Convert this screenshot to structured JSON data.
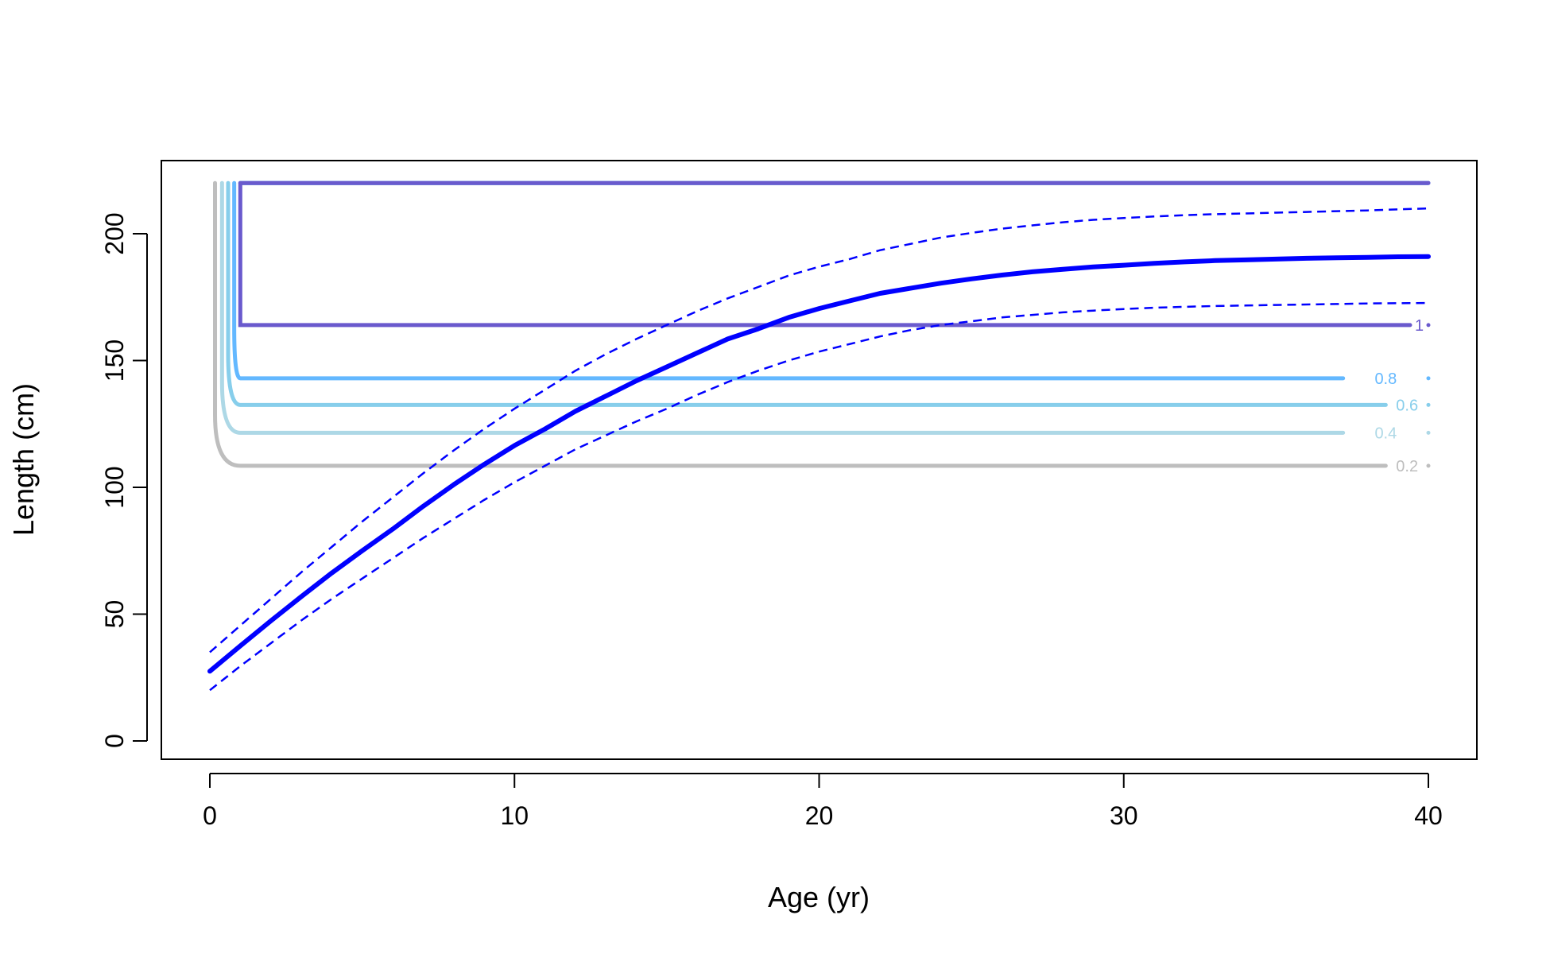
{
  "chart_data": {
    "type": "line",
    "title": "",
    "xlabel": "Age (yr)",
    "ylabel": "Length (cm)",
    "xlim": [
      -1.6,
      41.6
    ],
    "ylim": [
      -6.6,
      229
    ],
    "grid": false,
    "legend": "none",
    "x_ticks": [
      0,
      10,
      20,
      30,
      40
    ],
    "y_ticks": [
      0,
      50,
      100,
      150,
      200
    ],
    "x_tick_labels": [
      "0",
      "10",
      "20",
      "30",
      "40"
    ],
    "y_tick_labels": [
      "0",
      "50",
      "100",
      "150",
      "200"
    ],
    "growth_curve": {
      "color": "#0000FF",
      "x": [
        0,
        1,
        2,
        3,
        4,
        5,
        6,
        7,
        8,
        9,
        10,
        11,
        12,
        13,
        14,
        15,
        16,
        17,
        18,
        19,
        20,
        21,
        22,
        23,
        24,
        25,
        26,
        27,
        28,
        29,
        30,
        31,
        32,
        33,
        34,
        35,
        36,
        37,
        38,
        39,
        40
      ],
      "mean": [
        27.5,
        37.5,
        47.3,
        56.9,
        66.2,
        75.0,
        83.5,
        92.5,
        101.0,
        109.0,
        116.5,
        123.0,
        130.0,
        136.0,
        142.0,
        147.5,
        153.0,
        158.5,
        162.5,
        167.0,
        170.5,
        173.5,
        176.5,
        178.5,
        180.5,
        182.2,
        183.7,
        185.0,
        186.0,
        186.9,
        187.6,
        188.3,
        188.9,
        189.4,
        189.7,
        190.0,
        190.3,
        190.5,
        190.7,
        190.9,
        191.0
      ],
      "upper": [
        35.0,
        45.5,
        56.0,
        66.5,
        76.5,
        86.5,
        96.0,
        105.5,
        114.5,
        123.0,
        131.0,
        138.5,
        146.0,
        152.5,
        158.5,
        164.0,
        169.5,
        174.5,
        179.0,
        183.5,
        187.0,
        190.0,
        193.5,
        196.0,
        198.5,
        200.3,
        202.0,
        203.3,
        204.5,
        205.5,
        206.2,
        206.8,
        207.3,
        207.7,
        208.0,
        208.3,
        208.6,
        208.9,
        209.2,
        209.6,
        210.0
      ],
      "lower": [
        20.0,
        29.5,
        38.5,
        47.5,
        56.0,
        64.0,
        72.0,
        80.0,
        87.5,
        95.0,
        102.0,
        108.5,
        115.0,
        120.5,
        126.0,
        131.0,
        136.5,
        141.5,
        146.0,
        150.0,
        153.5,
        156.5,
        159.5,
        162.0,
        164.0,
        165.5,
        167.0,
        168.0,
        169.0,
        169.7,
        170.3,
        170.8,
        171.2,
        171.5,
        171.7,
        171.9,
        172.1,
        172.3,
        172.5,
        172.6,
        172.7
      ]
    },
    "contours": [
      {
        "label": "0.2",
        "color": "#BEBEBE",
        "level": 108.5,
        "x_bottom": 1.0,
        "x_bend": 0.17,
        "label_x": 40.0,
        "label_x_end": 38.6
      },
      {
        "label": "0.4",
        "color": "#ADD8E6",
        "level": 121.5,
        "x_bottom": 1.0,
        "x_bend": 0.4,
        "label_x": 37.2,
        "label_x_end": 40.0
      },
      {
        "label": "0.6",
        "color": "#87CEEB",
        "level": 132.5,
        "x_bottom": 1.0,
        "x_bend": 0.6,
        "label_x": 40.0,
        "label_x_end": 38.6
      },
      {
        "label": "0.8",
        "color": "#63B8FF",
        "level": 143.0,
        "x_bottom": 1.0,
        "x_bend": 0.8,
        "label_x": 37.2,
        "label_x_end": 40.0
      },
      {
        "label": "1",
        "color": "#6A5ACD",
        "level": 164.0,
        "x_bottom": 1.0,
        "x_bend": 1.0,
        "label_x": 40.0,
        "label_x_end": 39.4
      }
    ],
    "contour_top": 220
  }
}
